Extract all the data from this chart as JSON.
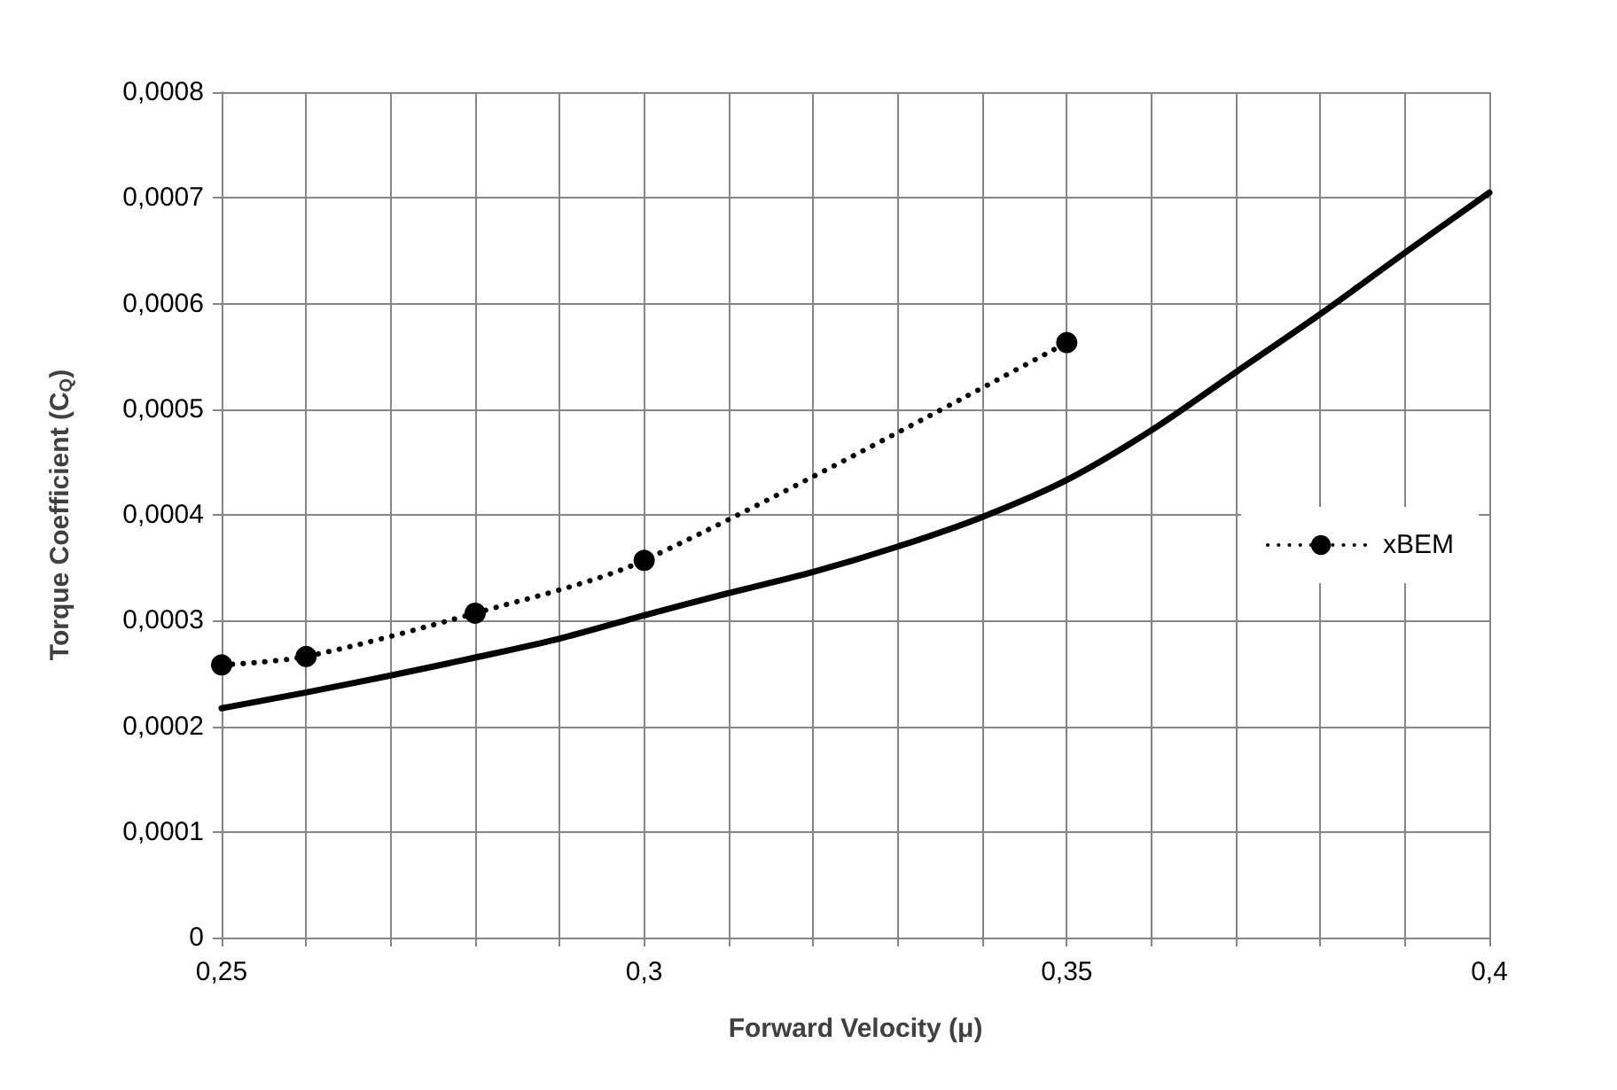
{
  "chart_data": {
    "type": "line",
    "xlabel": "Forward Velocity (μ)",
    "ylabel": "Torque Coefficient (C$_{Q}$)",
    "xlim": [
      0.25,
      0.4
    ],
    "xticks": [
      {
        "value": 0.25,
        "label": "0,25"
      },
      {
        "value": 0.26,
        "label": null
      },
      {
        "value": 0.27,
        "label": null
      },
      {
        "value": 0.28,
        "label": null
      },
      {
        "value": 0.29,
        "label": null
      },
      {
        "value": 0.3,
        "label": "0,3"
      },
      {
        "value": 0.31,
        "label": null
      },
      {
        "value": 0.32,
        "label": null
      },
      {
        "value": 0.33,
        "label": null
      },
      {
        "value": 0.34,
        "label": null
      },
      {
        "value": 0.35,
        "label": "0,35"
      },
      {
        "value": 0.36,
        "label": null
      },
      {
        "value": 0.37,
        "label": null
      },
      {
        "value": 0.38,
        "label": null
      },
      {
        "value": 0.39,
        "label": null
      },
      {
        "value": 0.4,
        "label": "0,4"
      }
    ],
    "ylim": [
      0,
      0.0008
    ],
    "yticks": [
      0,
      {
        "value": 0.0001,
        "label": "0,0001"
      },
      {
        "value": 0.0002,
        "label": "0,0002"
      },
      {
        "value": 0.0003,
        "label": "0,0003"
      },
      {
        "value": 0.0004,
        "label": "0,0004"
      },
      {
        "value": 0.0005,
        "label": "0,0005"
      },
      {
        "value": 0.0006,
        "label": "0,0006"
      },
      {
        "value": 0.0007,
        "label": "0,0007"
      },
      {
        "value": 0.0008,
        "label": "0,0008"
      }
    ],
    "grid": true,
    "legend": "right",
    "series": [
      {
        "color": "#000000",
        "line_style": "solid",
        "marker": "none",
        "x": [
          0.25,
          0.26,
          0.27,
          0.28,
          0.29,
          0.3,
          0.31,
          0.32,
          0.33,
          0.34,
          0.35,
          0.36,
          0.37,
          0.38,
          0.39,
          0.4
        ],
        "values": [
          0.000217,
          0.000232,
          0.000248,
          0.000265,
          0.000283,
          0.000305,
          0.000326,
          0.000346,
          0.00037,
          0.000398,
          0.000433,
          0.00048,
          0.000535,
          0.00059,
          0.000648,
          0.000705
        ]
      },
      {
        "name": "xBEM",
        "color": "#000000",
        "line_style": "dotted",
        "marker": "circle",
        "x": [
          0.25,
          0.26,
          0.28,
          0.3,
          0.35
        ],
        "values": [
          0.000258,
          0.000266,
          0.000307,
          0.000357,
          0.000563
        ]
      }
    ]
  }
}
